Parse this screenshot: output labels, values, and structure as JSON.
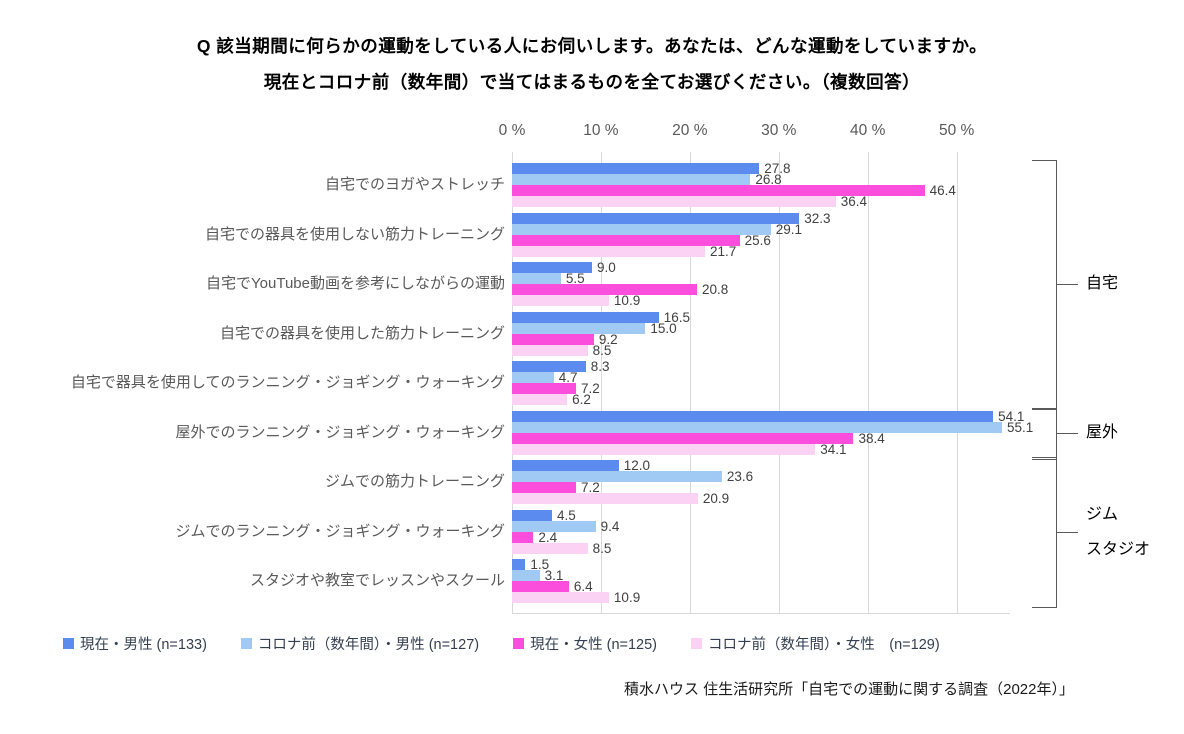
{
  "title": {
    "line1": "Q 該当期間に何らかの運動をしている人にお伺いします。あなたは、どんな運動をしていますか。",
    "line2": "現在とコロナ前（数年間）で当てはまるものを全てお選びください。（複数回答）"
  },
  "axis": {
    "tick_labels": [
      "0 %",
      "10 %",
      "20 %",
      "30 %",
      "40 %",
      "50 %"
    ],
    "tick_values": [
      0,
      10,
      20,
      30,
      40,
      50
    ]
  },
  "chart_data": {
    "type": "bar",
    "orientation": "horizontal",
    "title": "Q 該当期間に何らかの運動をしている人にお伺いします。あなたは、どんな運動をしていますか。現在とコロナ前（数年間）で当てはまるものを全てお選びください。（複数回答）",
    "xlabel": "",
    "ylabel": "",
    "xlim": [
      0,
      56
    ],
    "grid": true,
    "legend_position": "bottom",
    "categories": [
      "自宅でのヨガやストレッチ",
      "自宅での器具を使用しない筋力トレーニング",
      "自宅でYouTube動画を参考にしながらの運動",
      "自宅での器具を使用した筋力トレーニング",
      "自宅で器具を使用してのランニング・ジョギング・ウォーキング",
      "屋外でのランニング・ジョギング・ウォーキング",
      "ジムでの筋力トレーニング",
      "ジムでのランニング・ジョギング・ウォーキング",
      "スタジオや教室でレッスンやスクール"
    ],
    "series": [
      {
        "name": "現在・男性 (n=133)",
        "color": "#5b8bef",
        "values": [
          27.8,
          32.3,
          9.0,
          16.5,
          8.3,
          54.1,
          12.0,
          4.5,
          1.5
        ]
      },
      {
        "name": "コロナ前（数年間）・男性 (n=127)",
        "color": "#a0c9f3",
        "values": [
          26.8,
          29.1,
          5.5,
          15.0,
          4.7,
          55.1,
          23.6,
          9.4,
          3.1
        ]
      },
      {
        "name": "現在・女性 (n=125)",
        "color": "#fb4edc",
        "values": [
          46.4,
          25.6,
          20.8,
          9.2,
          7.2,
          38.4,
          7.2,
          2.4,
          6.4
        ]
      },
      {
        "name": "コロナ前（数年間）・女性　(n=129)",
        "color": "#fcd2f4",
        "values": [
          36.4,
          21.7,
          10.9,
          8.5,
          6.2,
          34.1,
          20.9,
          8.5,
          10.9
        ]
      }
    ]
  },
  "category_groups": [
    {
      "label_lines": [
        "自宅"
      ],
      "row_start": 0,
      "row_end": 4
    },
    {
      "label_lines": [
        "屋外"
      ],
      "row_start": 5,
      "row_end": 5
    },
    {
      "label_lines": [
        "ジム",
        "スタジオ"
      ],
      "row_start": 6,
      "row_end": 8
    }
  ],
  "source": "積水ハウス 住生活研究所「自宅での運動に関する調査（2022年）」"
}
